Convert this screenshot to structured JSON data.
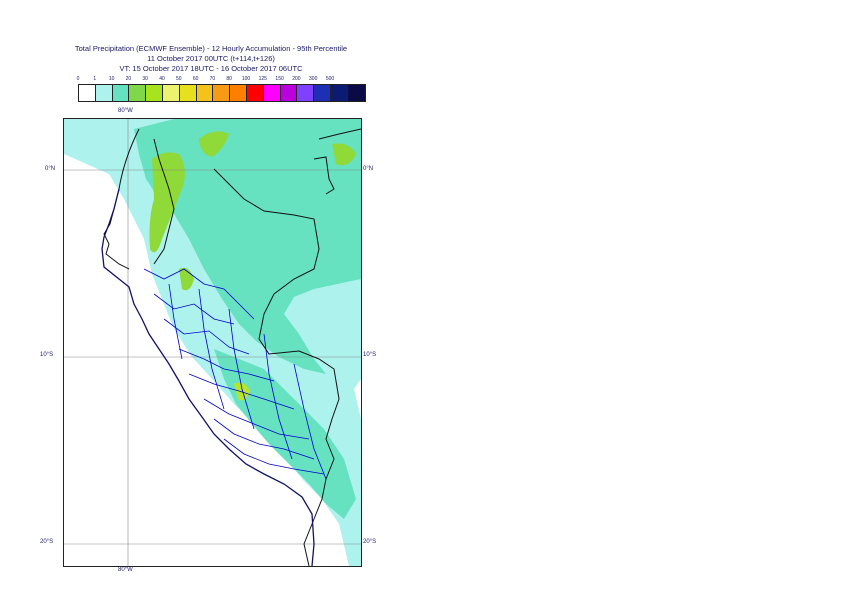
{
  "title": {
    "line1": "Total Precipitation (ECMWF Ensemble) - 12 Hourly Accumulation - 95th Percentile",
    "line2": "11 October 2017 00UTC (t+114,t+126)",
    "line3": "VT: 15 October 2017 18UTC - 16 October 2017 06UTC"
  },
  "legend": {
    "labels": [
      "0",
      "1",
      "10",
      "20",
      "30",
      "40",
      "50",
      "60",
      "70",
      "80",
      "100",
      "125",
      "150",
      "200",
      "300",
      "500"
    ],
    "colors": [
      "#ffffff",
      "#aef2ee",
      "#66e2c0",
      "#7fd84a",
      "#a8e31f",
      "#ecf36e",
      "#e6e01e",
      "#f3c21b",
      "#f79a15",
      "#ff8000",
      "#fe0000",
      "#ff00ff",
      "#bb00dd",
      "#7f40ff",
      "#1f2fb5",
      "#0d1a72",
      "#0a0a45"
    ]
  },
  "axes": {
    "lon_top": "80°W",
    "lon_bottom": "80°W",
    "lat_left": [
      "0°N",
      "10°S",
      "20°S"
    ],
    "lat_right": [
      "0°N",
      "10°S",
      "20°S"
    ]
  },
  "map_colors": {
    "light": "#aef2ee",
    "medium": "#66e2c0",
    "green": "#8fd938",
    "yellowgreen": "#b8e42a",
    "border": "#111111",
    "admin": "#0000cc",
    "grid": "#888888"
  }
}
